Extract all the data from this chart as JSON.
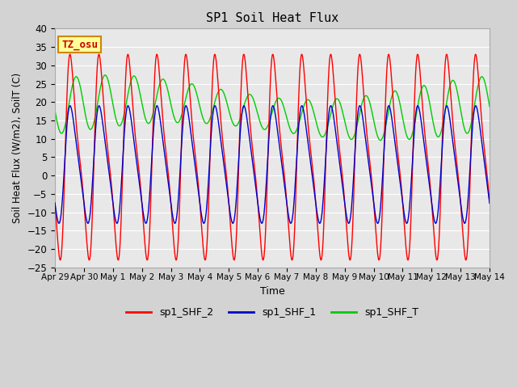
{
  "title": "SP1 Soil Heat Flux",
  "xlabel": "Time",
  "ylabel": "Soil Heat Flux (W/m2), SoilT (C)",
  "ylim": [
    -25,
    40
  ],
  "yticks": [
    -25,
    -20,
    -15,
    -10,
    -5,
    0,
    5,
    10,
    15,
    20,
    25,
    30,
    35,
    40
  ],
  "bg_color": "#d3d3d3",
  "plot_bg_color": "#e8e8e8",
  "grid_color": "#ffffff",
  "line_colors": {
    "sp1_SHF_2": "#ff0000",
    "sp1_SHF_1": "#0000cc",
    "sp1_SHF_T": "#00cc00"
  },
  "legend_labels": [
    "sp1_SHF_2",
    "sp1_SHF_1",
    "sp1_SHF_T"
  ],
  "tz_label": "TZ_osu",
  "tz_bg": "#ffff99",
  "tz_border": "#cc8800",
  "tz_text_color": "#cc0000",
  "start_day": 0,
  "end_day": 15,
  "n_points": 1500,
  "xtick_days": [
    0,
    1,
    2,
    3,
    4,
    5,
    6,
    7,
    8,
    9,
    10,
    11,
    12,
    13,
    14,
    15
  ],
  "xtick_labels": [
    "Apr 29",
    "Apr 30",
    "May 1",
    "May 2",
    "May 3",
    "May 4",
    "May 5",
    "May 6",
    "May 7",
    "May 8",
    "May 9",
    "May 10",
    "May 11",
    "May 12",
    "May 13",
    "May 14"
  ],
  "shf2_amp": 28,
  "shf2_mean": 5,
  "shf2_phase": 0.62,
  "shf1_amp": 16,
  "shf1_mean": 3,
  "shf1_phase": 0.6,
  "shfT_base": 18,
  "shfT_amp": 6,
  "shfT_phase": 0.48,
  "shfT_slow_amp": 3,
  "shfT_slow_period": 14
}
